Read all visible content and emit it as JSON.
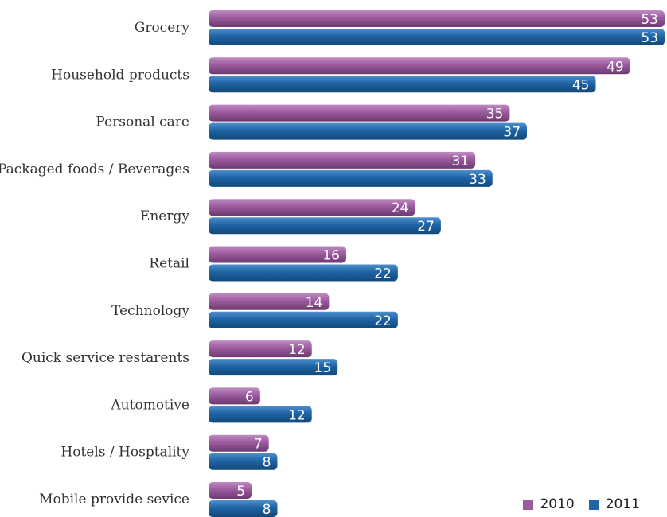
{
  "chart_data": {
    "type": "bar",
    "orientation": "horizontal",
    "categories": [
      "Grocery",
      "Household products",
      "Personal care",
      "Packaged foods / Beverages",
      "Energy",
      "Retail",
      "Technology",
      "Quick service restarents",
      "Automotive",
      "Hotels / Hosptality",
      "Mobile provide sevice"
    ],
    "series": [
      {
        "name": "2010",
        "color": "#9b5a9e",
        "values": [
          53,
          49,
          35,
          31,
          24,
          16,
          14,
          12,
          6,
          7,
          5
        ]
      },
      {
        "name": "2011",
        "color": "#1e64a6",
        "values": [
          53,
          45,
          37,
          33,
          27,
          22,
          22,
          15,
          12,
          8,
          8
        ]
      }
    ],
    "xlim": [
      0,
      53
    ],
    "grid": false,
    "legend_position": "bottom-right",
    "data_labels": true
  }
}
